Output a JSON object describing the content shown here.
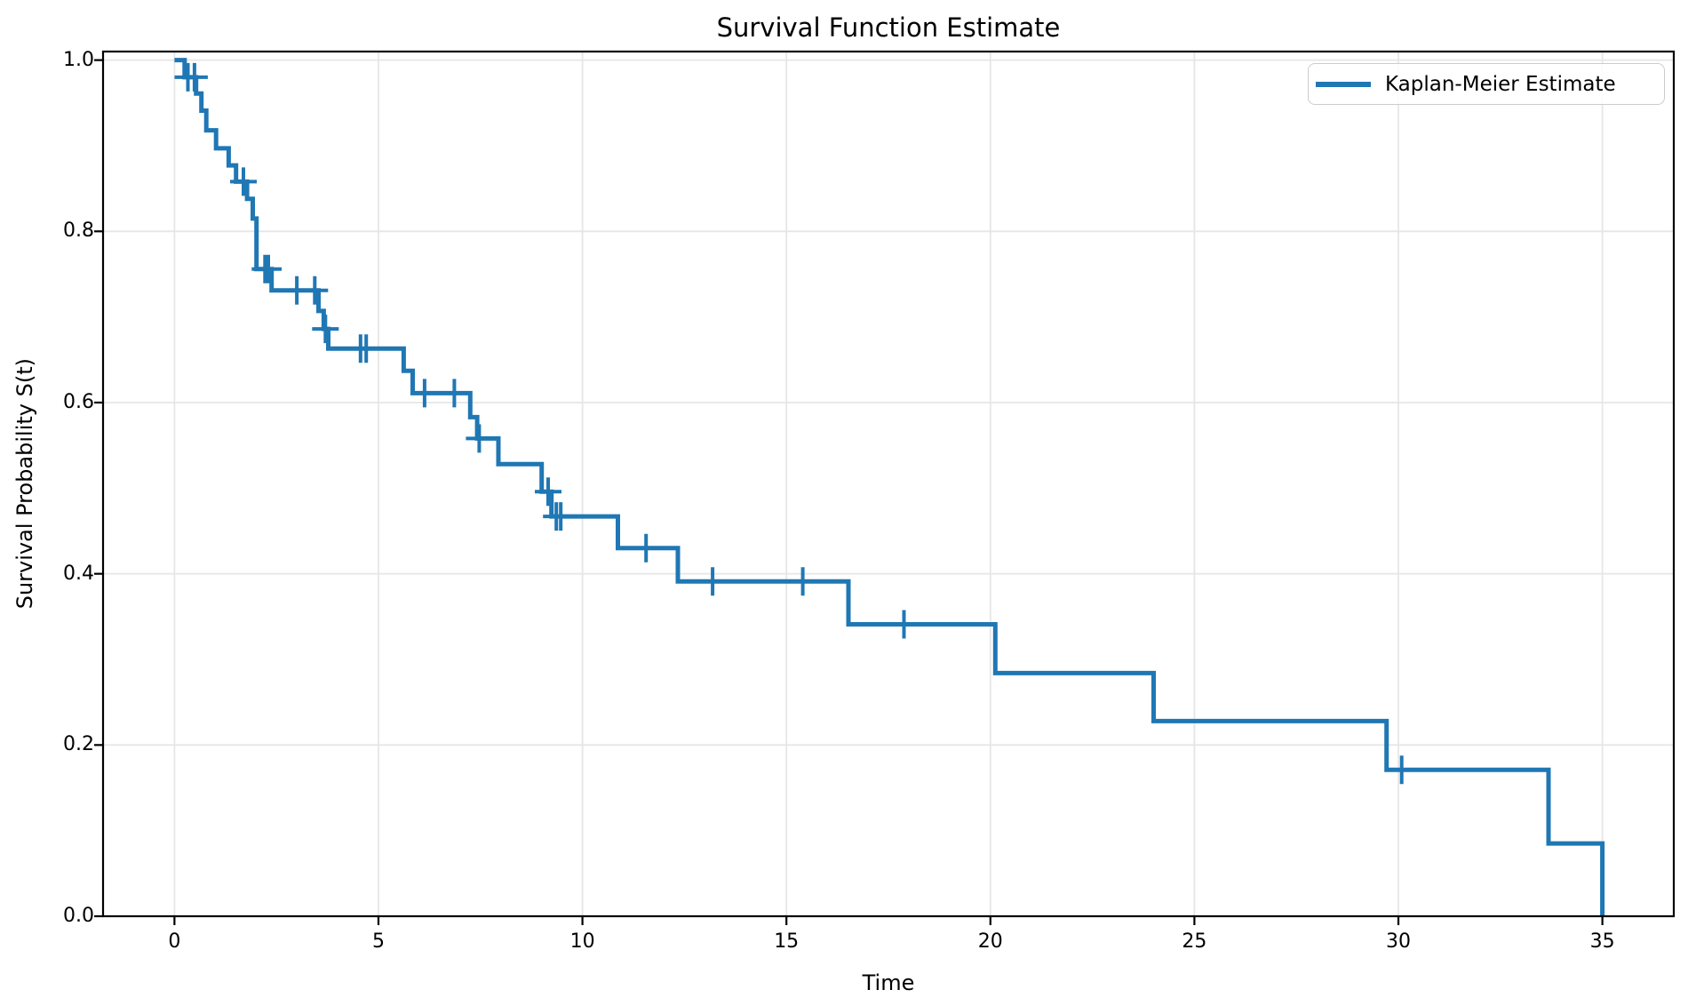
{
  "figure": {
    "background": "#ffffff",
    "text_color": "#000000"
  },
  "chart_data": {
    "type": "line",
    "subtype": "kaplan-meier-step",
    "title": "Survival Function Estimate",
    "xlabel": "Time",
    "ylabel": "Survival Probability S(t)",
    "legend": [
      "Kaplan-Meier Estimate"
    ],
    "legend_position": "upper right",
    "grid": true,
    "grid_color": "#e6e6e6",
    "line_color": "#1f77b4",
    "spine_color": "#000000",
    "xlim": [
      -1.75,
      36.75
    ],
    "ylim": [
      0,
      1.01
    ],
    "xticks": [
      0,
      5,
      10,
      15,
      20,
      25,
      30,
      35
    ],
    "xtick_labels": [
      "0",
      "5",
      "10",
      "15",
      "20",
      "25",
      "30",
      "35"
    ],
    "yticks": [
      0.0,
      0.2,
      0.4,
      0.6,
      0.8,
      1.0
    ],
    "ytick_labels": [
      "0.0",
      "0.2",
      "0.4",
      "0.6",
      "0.8",
      "1.0"
    ],
    "steps": [
      [
        0.0,
        1.0
      ],
      [
        0.25,
        0.98
      ],
      [
        0.53,
        0.961
      ],
      [
        0.66,
        0.941
      ],
      [
        0.78,
        0.918
      ],
      [
        1.02,
        0.897
      ],
      [
        1.33,
        0.877
      ],
      [
        1.51,
        0.858
      ],
      [
        1.78,
        0.838
      ],
      [
        1.92,
        0.815
      ],
      [
        2.01,
        0.756
      ],
      [
        2.38,
        0.731
      ],
      [
        3.53,
        0.707
      ],
      [
        3.66,
        0.686
      ],
      [
        3.77,
        0.663
      ],
      [
        5.62,
        0.637
      ],
      [
        5.84,
        0.611
      ],
      [
        7.25,
        0.583
      ],
      [
        7.42,
        0.558
      ],
      [
        7.94,
        0.528
      ],
      [
        9.0,
        0.496
      ],
      [
        9.24,
        0.467
      ],
      [
        10.87,
        0.43
      ],
      [
        12.34,
        0.391
      ],
      [
        16.52,
        0.341
      ],
      [
        20.12,
        0.284
      ],
      [
        24.0,
        0.228
      ],
      [
        29.71,
        0.171
      ],
      [
        33.68,
        0.085
      ],
      [
        35.0,
        0.0
      ]
    ],
    "censored": [
      [
        0.33,
        0.98
      ],
      [
        0.49,
        0.98
      ],
      [
        1.69,
        0.858
      ],
      [
        2.22,
        0.756
      ],
      [
        2.3,
        0.756
      ],
      [
        3.0,
        0.731
      ],
      [
        3.44,
        0.731
      ],
      [
        3.7,
        0.686
      ],
      [
        4.56,
        0.663
      ],
      [
        4.7,
        0.663
      ],
      [
        6.13,
        0.611
      ],
      [
        6.86,
        0.611
      ],
      [
        7.47,
        0.558
      ],
      [
        9.16,
        0.496
      ],
      [
        9.36,
        0.467
      ],
      [
        9.47,
        0.467
      ],
      [
        11.56,
        0.43
      ],
      [
        13.19,
        0.391
      ],
      [
        15.4,
        0.391
      ],
      [
        17.88,
        0.341
      ],
      [
        30.08,
        0.171
      ]
    ]
  }
}
